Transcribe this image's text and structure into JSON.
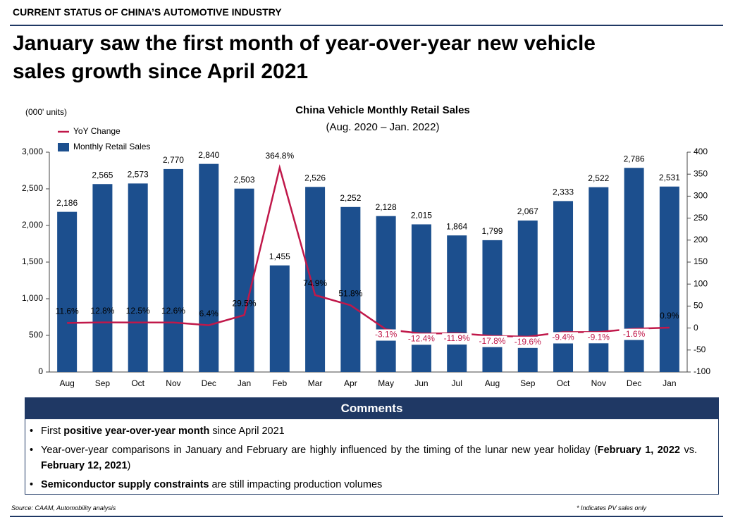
{
  "header": {
    "kicker": "CURRENT STATUS OF CHINA’S AUTOMOTIVE INDUSTRY",
    "title_lines": [
      "January saw the first month of year-over-year new vehicle",
      "sales growth since April 2021"
    ]
  },
  "chart_data": {
    "type": "bar-line",
    "title": "China Vehicle Monthly Retail Sales",
    "subtitle": "(Aug. 2020 – Jan. 2022)",
    "y_axis_label": "(000' units)",
    "categories": [
      "Aug",
      "Sep",
      "Oct",
      "Nov",
      "Dec",
      "Jan",
      "Feb",
      "Mar",
      "Apr",
      "May",
      "Jun",
      "Jul",
      "Aug",
      "Sep",
      "Oct",
      "Nov",
      "Dec",
      "Jan"
    ],
    "series": [
      {
        "name": "Monthly Retail Sales",
        "type": "bar",
        "color": "#1c4f8e",
        "values": [
          2186,
          2565,
          2573,
          2770,
          2840,
          2503,
          1455,
          2526,
          2252,
          2128,
          2015,
          1864,
          1799,
          2067,
          2333,
          2522,
          2786,
          2531
        ],
        "value_labels": [
          "2,186",
          "2,565",
          "2,573",
          "2,770",
          "2,840",
          "2,503",
          "1,455",
          "2,526",
          "2,252",
          "2,128",
          "2,015",
          "1,864",
          "1,799",
          "2,067",
          "2,333",
          "2,522",
          "2,786",
          "2,531"
        ]
      },
      {
        "name": "YoY Change",
        "type": "line",
        "axis": "y2",
        "color": "#c0184a",
        "values": [
          11.6,
          12.8,
          12.5,
          12.6,
          6.4,
          29.5,
          364.8,
          74.9,
          51.8,
          -3.1,
          -12.4,
          -11.9,
          -17.8,
          -19.6,
          -9.4,
          -9.1,
          -1.6,
          0.9
        ],
        "value_labels": [
          "11.6%",
          "12.8%",
          "12.5%",
          "12.6%",
          "6.4%",
          "29.5%",
          "364.8%",
          "74.9%",
          "51.8%",
          "-3.1%",
          "-12.4%",
          "-11.9%",
          "-17.8%",
          "-19.6%",
          "-9.4%",
          "-9.1%",
          "-1.6%",
          "0.9%"
        ]
      }
    ],
    "ylim": [
      0,
      3000
    ],
    "yticks": [
      0,
      500,
      {
        "value": 1000,
        "label": "1,000"
      },
      {
        "value": 1500,
        "label": "1,500"
      },
      {
        "value": 2000,
        "label": "2,000"
      },
      {
        "value": 2500,
        "label": "2,500"
      },
      {
        "value": 3000,
        "label": "3,000"
      }
    ],
    "y2lim": [
      -100,
      400
    ],
    "y2ticks": [
      -100,
      -50,
      0,
      50,
      100,
      150,
      200,
      250,
      300,
      350,
      400
    ],
    "grid": false,
    "legend": "top-left"
  },
  "comments": {
    "title": "Comments",
    "items": [
      [
        {
          "text": "First "
        },
        {
          "text": "positive year-over-year month",
          "bold": true
        },
        {
          "text": " since April 2021"
        }
      ],
      [
        {
          "text": "Year-over-year comparisons in January and February are highly influenced by the timing of the lunar new year holiday ("
        },
        {
          "text": "February 1, 2022",
          "bold": true
        },
        {
          "text": " vs. "
        },
        {
          "text": "February 12, 2021",
          "bold": true
        },
        {
          "text": ")"
        }
      ],
      [
        {
          "text": "Semiconductor supply constraints",
          "bold": true
        },
        {
          "text": " are still impacting production volumes"
        }
      ]
    ]
  },
  "footer": {
    "source": "Source: CAAM, Automobility analysis",
    "note": "* Indicates PV sales only"
  }
}
